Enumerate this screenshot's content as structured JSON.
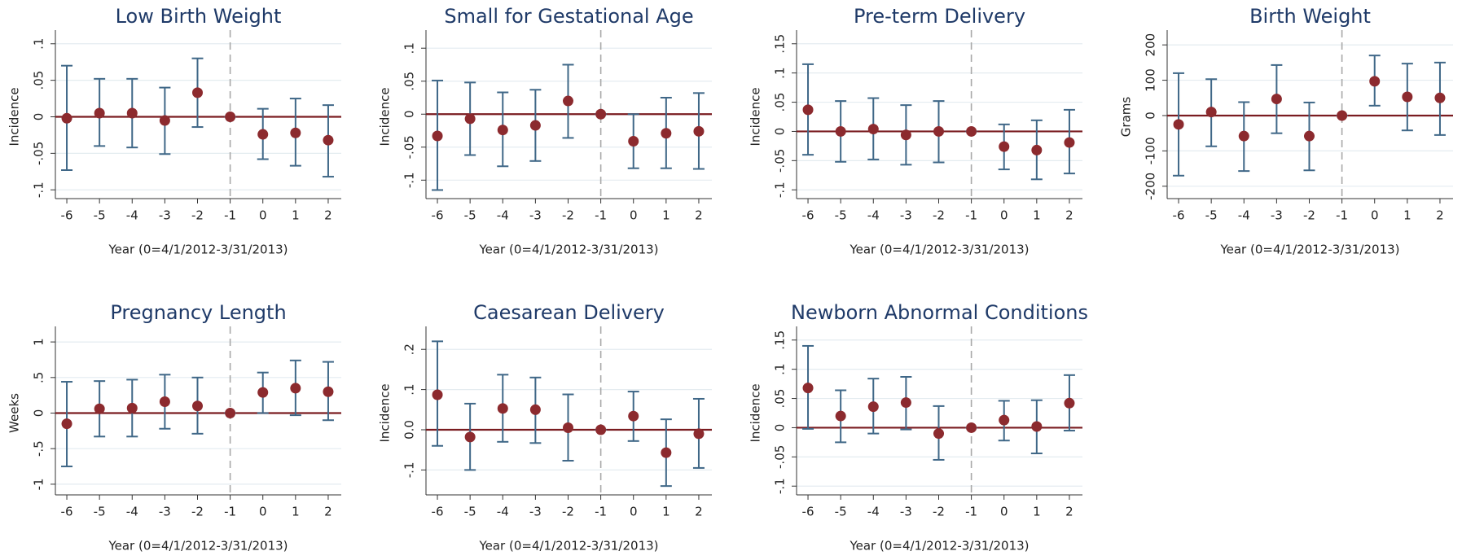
{
  "chart_data": [
    {
      "type": "errorbar",
      "title": "Low Birth Weight",
      "x_label": "Year (0=4/1/2012-3/31/2013)",
      "y_label": "Incidence",
      "x": [
        -6,
        -5,
        -4,
        -3,
        -2,
        -1,
        0,
        1,
        2
      ],
      "values": [
        -0.002,
        0.005,
        0.005,
        -0.005,
        0.033,
        0,
        -0.024,
        -0.022,
        -0.032
      ],
      "lower": [
        -0.073,
        -0.04,
        -0.042,
        -0.051,
        -0.014,
        0,
        -0.058,
        -0.067,
        -0.082
      ],
      "upper": [
        0.07,
        0.052,
        0.052,
        0.04,
        0.08,
        0,
        0.011,
        0.025,
        0.016
      ],
      "xlim": [
        -6.35,
        2.4
      ],
      "xticks": [
        -6,
        -5,
        -4,
        -3,
        -2,
        -1,
        0,
        1,
        2
      ],
      "ylim": [
        -0.112,
        0.112
      ],
      "yticks": [
        {
          "value": -0.1,
          "label": "-.1"
        },
        {
          "value": -0.05,
          "label": "-.05"
        },
        0,
        {
          "value": 0.05,
          "label": ".05"
        },
        {
          "value": 0.1,
          "label": ".1"
        }
      ],
      "hline": 0,
      "vline": -1,
      "grid": true,
      "marker_color": "#8c2a2e",
      "bar_color": "#3f6787",
      "hline_color": "#7a1c20",
      "vline_color": "#a8a8a8"
    },
    {
      "type": "errorbar",
      "title": "Small for Gestational Age",
      "x_label": "Year (0=4/1/2012-3/31/2013)",
      "y_label": "Incidence",
      "x": [
        -6,
        -5,
        -4,
        -3,
        -2,
        -1,
        0,
        1,
        2
      ],
      "values": [
        -0.033,
        -0.007,
        -0.024,
        -0.017,
        0.02,
        0,
        -0.041,
        -0.029,
        -0.026
      ],
      "lower": [
        -0.115,
        -0.062,
        -0.079,
        -0.071,
        -0.036,
        0,
        -0.082,
        -0.082,
        -0.083
      ],
      "upper": [
        0.051,
        0.048,
        0.033,
        0.037,
        0.075,
        0,
        0.0,
        0.025,
        0.032
      ],
      "xlim": [
        -6.35,
        2.4
      ],
      "xticks": [
        -6,
        -5,
        -4,
        -3,
        -2,
        -1,
        0,
        1,
        2
      ],
      "ylim": [
        -0.128,
        0.12
      ],
      "yticks": [
        {
          "value": -0.1,
          "label": "-.1"
        },
        {
          "value": -0.05,
          "label": "-.05"
        },
        0,
        {
          "value": 0.05,
          "label": ".05"
        },
        {
          "value": 0.1,
          "label": ".1"
        }
      ],
      "hline": 0,
      "vline": -1,
      "grid": true,
      "marker_color": "#8c2a2e",
      "bar_color": "#3f6787",
      "hline_color": "#7a1c20",
      "vline_color": "#a8a8a8"
    },
    {
      "type": "errorbar",
      "title": "Pre-term Delivery",
      "x_label": "Year (0=4/1/2012-3/31/2013)",
      "y_label": "Incidence",
      "x": [
        -6,
        -5,
        -4,
        -3,
        -2,
        -1,
        0,
        1,
        2
      ],
      "values": [
        0.037,
        0,
        0.004,
        -0.006,
        0,
        0,
        -0.026,
        -0.032,
        -0.019
      ],
      "lower": [
        -0.04,
        -0.052,
        -0.048,
        -0.057,
        -0.053,
        0,
        -0.065,
        -0.082,
        -0.072
      ],
      "upper": [
        0.115,
        0.052,
        0.057,
        0.045,
        0.052,
        0,
        0.012,
        0.019,
        0.037
      ],
      "xlim": [
        -6.35,
        2.4
      ],
      "xticks": [
        -6,
        -5,
        -4,
        -3,
        -2,
        -1,
        0,
        1,
        2
      ],
      "ylim": [
        -0.115,
        0.165
      ],
      "yticks": [
        {
          "value": -0.1,
          "label": "-.1"
        },
        {
          "value": -0.05,
          "label": "-.05"
        },
        0,
        {
          "value": 0.05,
          "label": ".05"
        },
        {
          "value": 0.1,
          "label": ".1"
        },
        {
          "value": 0.15,
          "label": ".15"
        }
      ],
      "hline": 0,
      "vline": -1,
      "grid": true,
      "marker_color": "#8c2a2e",
      "bar_color": "#3f6787",
      "hline_color": "#7a1c20",
      "vline_color": "#a8a8a8"
    },
    {
      "type": "errorbar",
      "title": "Birth Weight",
      "x_label": "Year (0=4/1/2012-3/31/2013)",
      "y_label": "Grams",
      "x": [
        -6,
        -5,
        -4,
        -3,
        -2,
        -1,
        0,
        1,
        2
      ],
      "values": [
        -25,
        10,
        -58,
        47,
        -58,
        0,
        97,
        53,
        50
      ],
      "lower": [
        -170,
        -87,
        -157,
        -50,
        -155,
        0,
        28,
        -42,
        -55
      ],
      "upper": [
        120,
        103,
        38,
        143,
        37,
        0,
        170,
        147,
        150
      ],
      "xlim": [
        -6.35,
        2.4
      ],
      "xticks": [
        -6,
        -5,
        -4,
        -3,
        -2,
        -1,
        0,
        1,
        2
      ],
      "ylim": [
        -235,
        228
      ],
      "yticks": [
        -200,
        -100,
        0,
        100,
        200
      ],
      "hline": 0,
      "vline": -1,
      "grid": true,
      "marker_color": "#8c2a2e",
      "bar_color": "#3f6787",
      "hline_color": "#7a1c20",
      "vline_color": "#a8a8a8"
    },
    {
      "type": "errorbar",
      "title": "Pregnancy Length",
      "x_label": "Year (0=4/1/2012-3/31/2013)",
      "y_label": "Weeks",
      "x": [
        -6,
        -5,
        -4,
        -3,
        -2,
        -1,
        0,
        1,
        2
      ],
      "values": [
        -0.15,
        0.06,
        0.07,
        0.16,
        0.1,
        0,
        0.29,
        0.35,
        0.3
      ],
      "lower": [
        -0.75,
        -0.33,
        -0.33,
        -0.22,
        -0.29,
        0,
        0,
        -0.03,
        -0.1
      ],
      "upper": [
        0.44,
        0.45,
        0.47,
        0.54,
        0.5,
        0,
        0.57,
        0.74,
        0.72
      ],
      "xlim": [
        -6.35,
        2.4
      ],
      "xticks": [
        -6,
        -5,
        -4,
        -3,
        -2,
        -1,
        0,
        1,
        2
      ],
      "ylim": [
        -1.15,
        1.15
      ],
      "yticks": [
        -1,
        {
          "value": -0.5,
          "label": "-.5"
        },
        0,
        {
          "value": 0.5,
          "label": ".5"
        },
        1
      ],
      "hline": 0,
      "vline": -1,
      "grid": true,
      "marker_color": "#8c2a2e",
      "bar_color": "#3f6787",
      "hline_color": "#7a1c20",
      "vline_color": "#a8a8a8"
    },
    {
      "type": "errorbar",
      "title": "Caesarean Delivery",
      "x_label": "Year (0=4/1/2012-3/31/2013)",
      "y_label": "Incidence",
      "x": [
        -6,
        -5,
        -4,
        -3,
        -2,
        -1,
        0,
        1,
        2
      ],
      "values": [
        0.087,
        -0.018,
        0.053,
        0.05,
        0.005,
        0,
        0.034,
        -0.057,
        -0.01
      ],
      "lower": [
        -0.04,
        -0.1,
        -0.03,
        -0.033,
        -0.077,
        0,
        -0.028,
        -0.14,
        -0.095
      ],
      "upper": [
        0.22,
        0.065,
        0.137,
        0.13,
        0.088,
        0,
        0.095,
        0.026,
        0.077
      ],
      "xlim": [
        -6.35,
        2.4
      ],
      "xticks": [
        -6,
        -5,
        -4,
        -3,
        -2,
        -1,
        0,
        1,
        2
      ],
      "ylim": [
        -0.162,
        0.245
      ],
      "yticks": [
        {
          "value": -0.1,
          "label": "-.1"
        },
        {
          "value": 0,
          "label": "0.0"
        },
        {
          "value": 0.1,
          "label": ".1"
        },
        {
          "value": 0.2,
          "label": ".2"
        }
      ],
      "hline": 0,
      "vline": -1,
      "grid": true,
      "marker_color": "#8c2a2e",
      "bar_color": "#3f6787",
      "hline_color": "#7a1c20",
      "vline_color": "#a8a8a8"
    },
    {
      "type": "errorbar",
      "title": "Newborn Abnormal Conditions",
      "x_label": "Year (0=4/1/2012-3/31/2013)",
      "y_label": "Incidence",
      "x": [
        -6,
        -5,
        -4,
        -3,
        -2,
        -1,
        0,
        1,
        2
      ],
      "values": [
        0.068,
        0.02,
        0.036,
        0.043,
        -0.01,
        0,
        0.013,
        0.002,
        0.042
      ],
      "lower": [
        -0.002,
        -0.025,
        -0.01,
        -0.003,
        -0.055,
        0,
        -0.022,
        -0.044,
        -0.005
      ],
      "upper": [
        0.14,
        0.064,
        0.084,
        0.087,
        0.037,
        0,
        0.046,
        0.047,
        0.09
      ],
      "xlim": [
        -6.35,
        2.4
      ],
      "xticks": [
        -6,
        -5,
        -4,
        -3,
        -2,
        -1,
        0,
        1,
        2
      ],
      "ylim": [
        -0.115,
        0.165
      ],
      "yticks": [
        {
          "value": -0.1,
          "label": "-.1"
        },
        {
          "value": -0.05,
          "label": "-.05"
        },
        0,
        {
          "value": 0.05,
          "label": ".05"
        },
        {
          "value": 0.1,
          "label": ".1"
        },
        {
          "value": 0.15,
          "label": ".15"
        }
      ],
      "hline": 0,
      "vline": -1,
      "grid": true,
      "marker_color": "#8c2a2e",
      "bar_color": "#3f6787",
      "hline_color": "#7a1c20",
      "vline_color": "#a8a8a8"
    }
  ]
}
